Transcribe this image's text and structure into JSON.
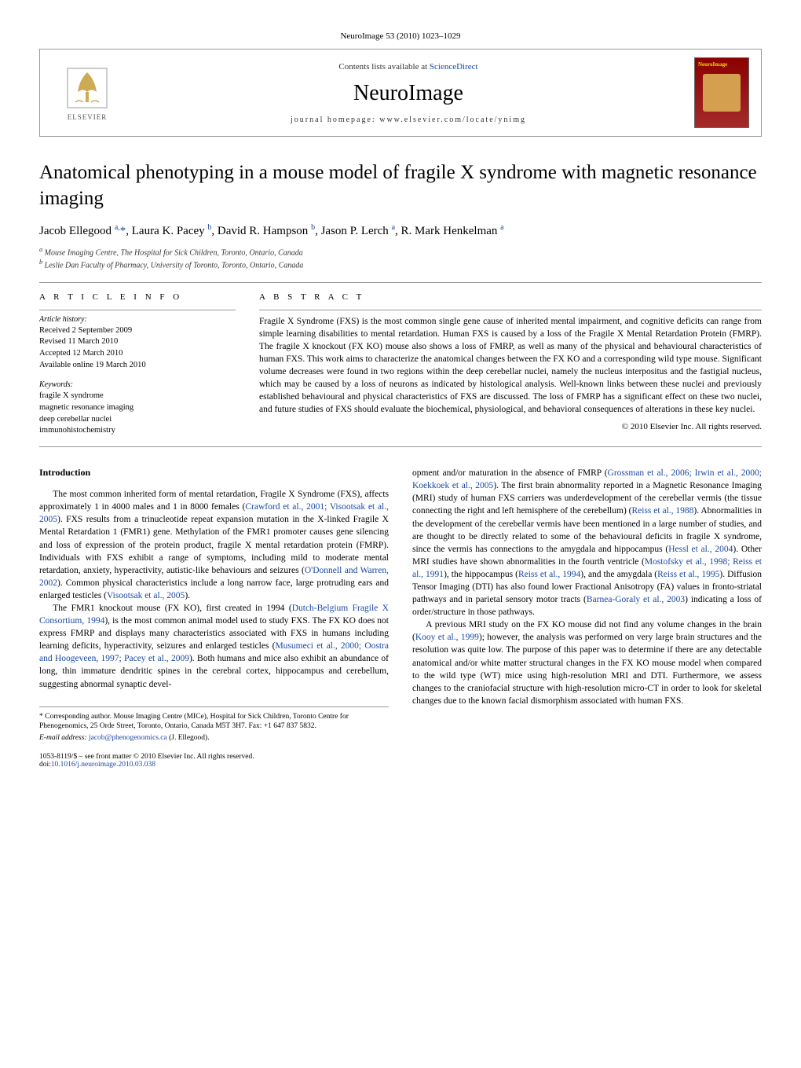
{
  "journal_citation": "NeuroImage 53 (2010) 1023–1029",
  "header": {
    "contents_prefix": "Contents lists available at ",
    "contents_link": "ScienceDirect",
    "journal_name": "NeuroImage",
    "homepage_prefix": "journal homepage: ",
    "homepage": "www.elsevier.com/locate/ynimg",
    "publisher": "ELSEVIER"
  },
  "title": "Anatomical phenotyping in a mouse model of fragile X syndrome with magnetic resonance imaging",
  "authors_html": "Jacob Ellegood <sup>a,</sup><a href=\"#\">*</a>, Laura K. Pacey <sup>b</sup>, David R. Hampson <sup>b</sup>, Jason P. Lerch <sup>a</sup>, R. Mark Henkelman <sup>a</sup>",
  "affiliations": [
    "a Mouse Imaging Centre, The Hospital for Sick Children, Toronto, Ontario, Canada",
    "b Leslie Dan Faculty of Pharmacy, University of Toronto, Toronto, Ontario, Canada"
  ],
  "article_info": {
    "heading": "A R T I C L E   I N F O",
    "history_label": "Article history:",
    "history": [
      "Received 2 September 2009",
      "Revised 11 March 2010",
      "Accepted 12 March 2010",
      "Available online 19 March 2010"
    ],
    "keywords_label": "Keywords:",
    "keywords": [
      "fragile X syndrome",
      "magnetic resonance imaging",
      "deep cerebellar nuclei",
      "immunohistochemistry"
    ]
  },
  "abstract": {
    "heading": "A B S T R A C T",
    "text": "Fragile X Syndrome (FXS) is the most common single gene cause of inherited mental impairment, and cognitive deficits can range from simple learning disabilities to mental retardation. Human FXS is caused by a loss of the Fragile X Mental Retardation Protein (FMRP). The fragile X knockout (FX KO) mouse also shows a loss of FMRP, as well as many of the physical and behavioural characteristics of human FXS. This work aims to characterize the anatomical changes between the FX KO and a corresponding wild type mouse. Significant volume decreases were found in two regions within the deep cerebellar nuclei, namely the nucleus interpositus and the fastigial nucleus, which may be caused by a loss of neurons as indicated by histological analysis. Well-known links between these nuclei and previously established behavioural and physical characteristics of FXS are discussed. The loss of FMRP has a significant effect on these two nuclei, and future studies of FXS should evaluate the biochemical, physiological, and behavioral consequences of alterations in these key nuclei.",
    "copyright": "© 2010 Elsevier Inc. All rights reserved."
  },
  "intro_heading": "Introduction",
  "intro_paras": [
    "The most common inherited form of mental retardation, Fragile X Syndrome (FXS), affects approximately 1 in 4000 males and 1 in 8000 females (<a href=\"#\">Crawford et al., 2001; Visootsak et al., 2005</a>). FXS results from a trinucleotide repeat expansion mutation in the X-linked Fragile X Mental Retardation 1 (FMR1) gene. Methylation of the FMR1 promoter causes gene silencing and loss of expression of the protein product, fragile X mental retardation protein (FMRP). Individuals with FXS exhibit a range of symptoms, including mild to moderate mental retardation, anxiety, hyperactivity, autistic-like behaviours and seizures (<a href=\"#\">O'Donnell and Warren, 2002</a>). Common physical characteristics include a long narrow face, large protruding ears and enlarged testicles (<a href=\"#\">Visootsak et al., 2005</a>).",
    "The FMR1 knockout mouse (FX KO), first created in 1994 (<a href=\"#\">Dutch-Belgium Fragile X Consortium, 1994</a>), is the most common animal model used to study FXS. The FX KO does not express FMRP and displays many characteristics associated with FXS in humans including learning deficits, hyperactivity, seizures and enlarged testicles (<a href=\"#\">Musumeci et al., 2000; Oostra and Hoogeveen, 1997; Pacey et al., 2009</a>). Both humans and mice also exhibit an abundance of long, thin immature dendritic spines in the cerebral cortex, hippocampus and cerebellum, suggesting abnormal synaptic devel-"
  ],
  "col2_paras": [
    "opment and/or maturation in the absence of FMRP (<a href=\"#\">Grossman et al., 2006; Irwin et al., 2000; Koekkoek et al., 2005</a>). The first brain abnormality reported in a Magnetic Resonance Imaging (MRI) study of human FXS carriers was underdevelopment of the cerebellar vermis (the tissue connecting the right and left hemisphere of the cerebellum) (<a href=\"#\">Reiss et al., 1988</a>). Abnormalities in the development of the cerebellar vermis have been mentioned in a large number of studies, and are thought to be directly related to some of the behavioural deficits in fragile X syndrome, since the vermis has connections to the amygdala and hippocampus (<a href=\"#\">Hessl et al., 2004</a>). Other MRI studies have shown abnormalities in the fourth ventricle (<a href=\"#\">Mostofsky et al., 1998; Reiss et al., 1991</a>), the hippocampus (<a href=\"#\">Reiss et al., 1994</a>), and the amygdala (<a href=\"#\">Reiss et al., 1995</a>). Diffusion Tensor Imaging (DTI) has also found lower Fractional Anisotropy (FA) values in fronto-striatal pathways and in parietal sensory motor tracts (<a href=\"#\">Barnea-Goraly et al., 2003</a>) indicating a loss of order/structure in those pathways.",
    "A previous MRI study on the FX KO mouse did not find any volume changes in the brain (<a href=\"#\">Kooy et al., 1999</a>); however, the analysis was performed on very large brain structures and the resolution was quite low. The purpose of this paper was to determine if there are any detectable anatomical and/or white matter structural changes in the FX KO mouse model when compared to the wild type (WT) mice using high-resolution MRI and DTI. Furthermore, we assess changes to the craniofacial structure with high-resolution micro-CT in order to look for skeletal changes due to the known facial dismorphism associated with human FXS."
  ],
  "footnotes": {
    "corresponding": "* Corresponding author. Mouse Imaging Centre (MICe), Hospital for Sick Children, Toronto Centre for Phenogenomics, 25 Orde Street, Toronto, Ontario, Canada M5T 3H7. Fax: +1 647 837 5832.",
    "email_label": "E-mail address: ",
    "email": "jacob@phenogenomics.ca",
    "email_suffix": " (J. Ellegood)."
  },
  "footer": {
    "line1": "1053-8119/$ – see front matter © 2010 Elsevier Inc. All rights reserved.",
    "doi_prefix": "doi:",
    "doi": "10.1016/j.neuroimage.2010.03.038"
  },
  "colors": {
    "link": "#1a48a3",
    "text": "#000000",
    "rule": "#999999"
  }
}
